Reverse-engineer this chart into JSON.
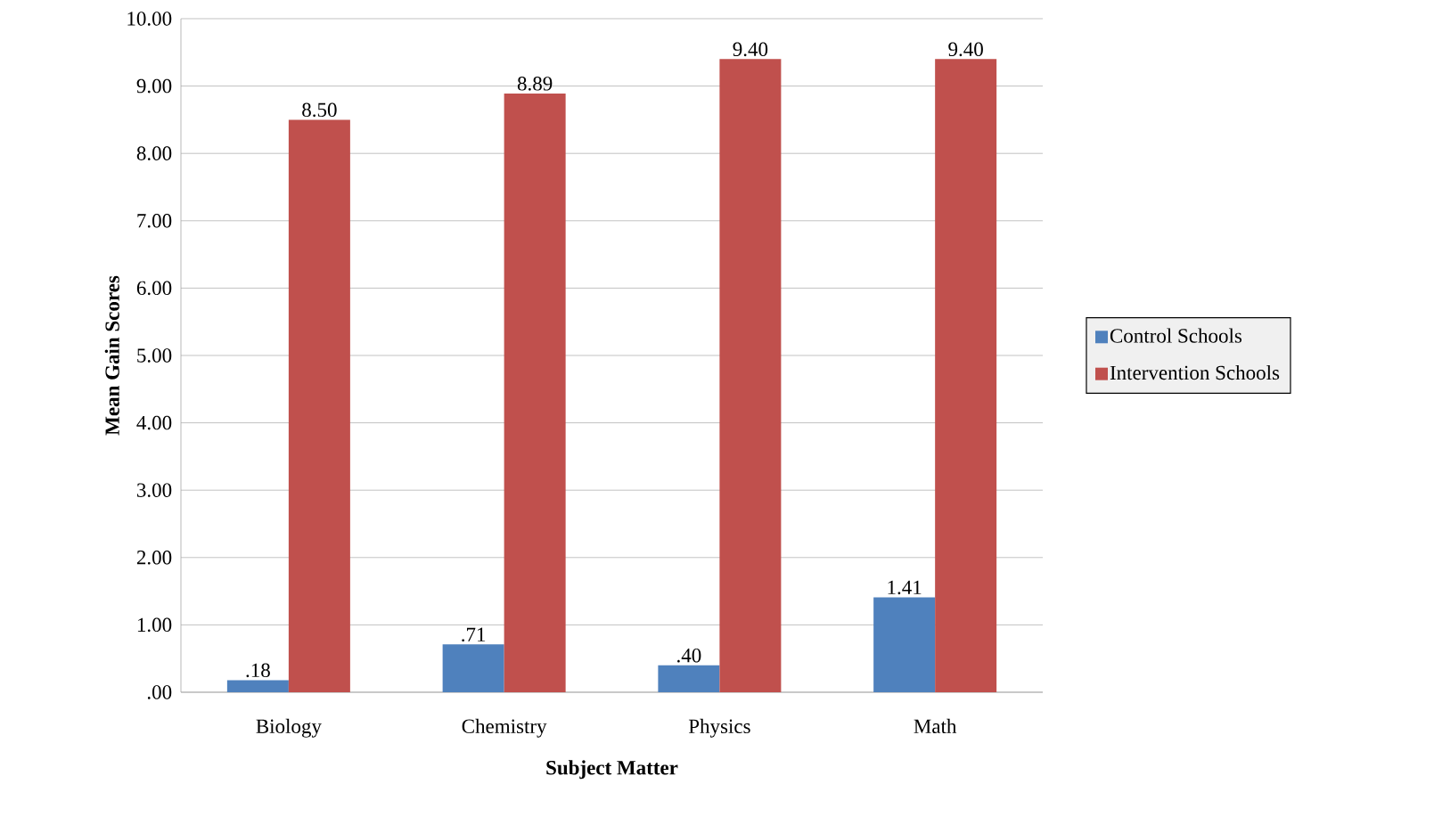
{
  "chart_data": {
    "type": "bar",
    "xlabel": "Subject Matter",
    "ylabel": "Mean Gain Scores",
    "categories": [
      "Biology",
      "Chemistry",
      "Physics",
      "Math"
    ],
    "series": [
      {
        "name": "Control Schools",
        "color": "#4f81bd",
        "values": [
          0.18,
          0.71,
          0.4,
          1.41
        ],
        "value_labels": [
          ".18",
          ".71",
          ".40",
          "1.41"
        ]
      },
      {
        "name": "Intervention Schools",
        "color": "#c0504d",
        "values": [
          8.5,
          8.89,
          9.4,
          9.4
        ],
        "value_labels": [
          "8.50",
          "8.89",
          "9.40",
          "9.40"
        ]
      }
    ],
    "ylim": [
      0,
      10
    ],
    "yticks": [
      {
        "value": 0,
        "label": ".00"
      },
      {
        "value": 1,
        "label": "1.00"
      },
      {
        "value": 2,
        "label": "2.00"
      },
      {
        "value": 3,
        "label": "3.00"
      },
      {
        "value": 4,
        "label": "4.00"
      },
      {
        "value": 5,
        "label": "5.00"
      },
      {
        "value": 6,
        "label": "6.00"
      },
      {
        "value": 7,
        "label": "7.00"
      },
      {
        "value": 8,
        "label": "8.00"
      },
      {
        "value": 9,
        "label": "9.00"
      },
      {
        "value": 10,
        "label": "10.00"
      }
    ],
    "grid": "y",
    "legend": "right"
  }
}
